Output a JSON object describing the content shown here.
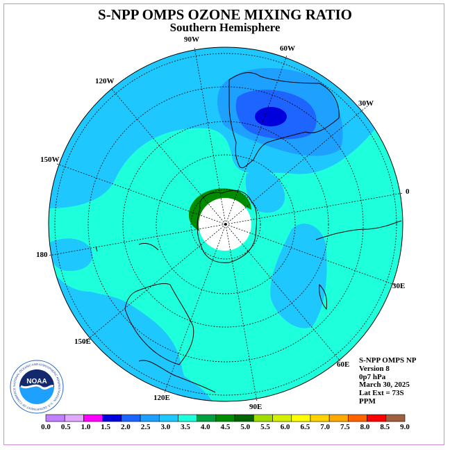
{
  "title": "S-NPP OMPS OZONE MIXING RATIO",
  "subtitle": "Southern Hemisphere",
  "longitude_labels": [
    "90W",
    "60W",
    "30W",
    "0",
    "30E",
    "60E",
    "90E",
    "120E",
    "150E",
    "180",
    "150W",
    "120W"
  ],
  "info": {
    "instrument": "S-NPP OMPS NP",
    "version": "Version 8",
    "pressure": "0p7 hPa",
    "date": "March 30, 2025",
    "lat_ext": "Lat Ext = 73S",
    "units": "PPM"
  },
  "logo": {
    "text": "NOAA",
    "ring_text": "NATIONAL OCEANIC AND ATMOSPHERIC ADMINISTRATION · U.S. DEPARTMENT OF COMMERCE"
  },
  "colorbar": {
    "labels": [
      "0.0",
      "0.5",
      "1.0",
      "1.5",
      "2.0",
      "2.5",
      "3.0",
      "3.5",
      "4.0",
      "4.5",
      "5.0",
      "5.5",
      "6.0",
      "6.5",
      "7.0",
      "7.5",
      "8.0",
      "8.5",
      "9.0"
    ],
    "colors": [
      "#c080ff",
      "#e0a8ff",
      "#ff00ff",
      "#0000dd",
      "#1e64ff",
      "#1ea0ff",
      "#1ec8ff",
      "#1effdc",
      "#00a040",
      "#008c00",
      "#006400",
      "#a0dc00",
      "#d2f000",
      "#ffff00",
      "#ffd200",
      "#ffaa00",
      "#ff6400",
      "#ff0000",
      "#a06040"
    ]
  },
  "colors": {
    "background_field": "#1ec8ff",
    "mid_field": "#1effdc",
    "pole_hole": "#ffffff"
  }
}
